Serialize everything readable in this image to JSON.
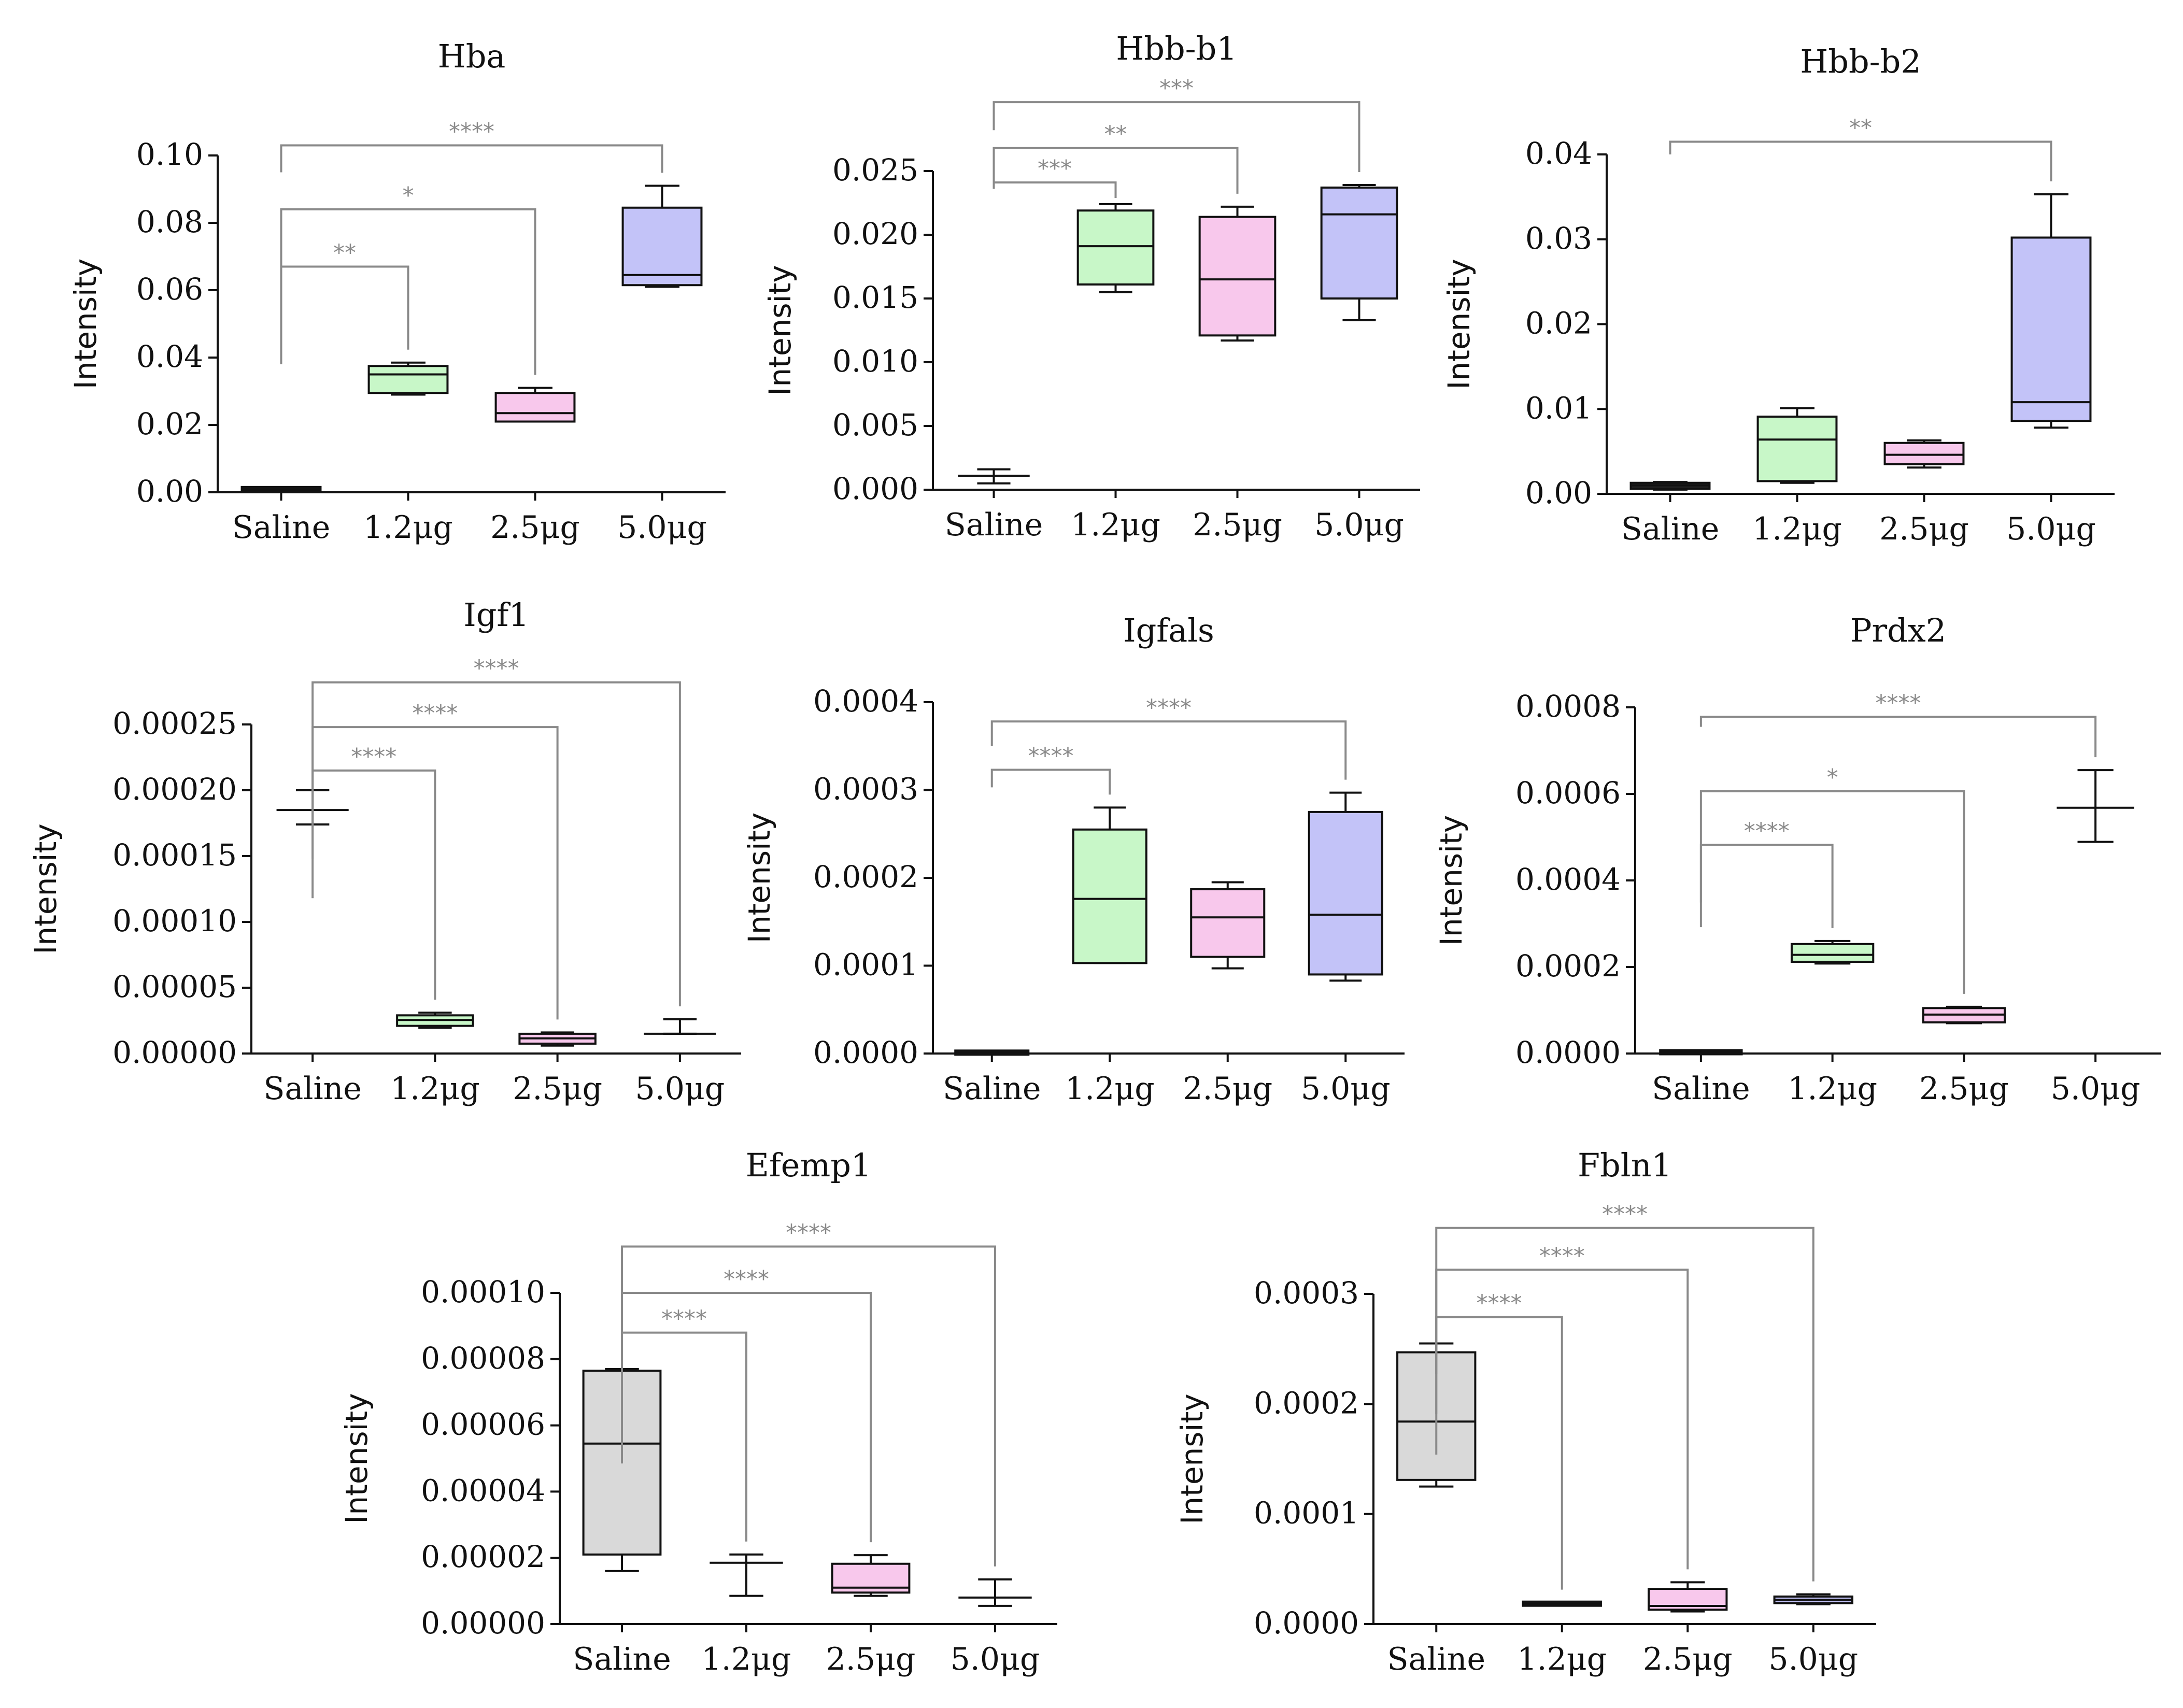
{
  "colors": {
    "saline": "#d9d9d9",
    "dose_1_2": "#c8f7c8",
    "dose_2_5": "#f8c8ec",
    "dose_5_0": "#c3c3f8",
    "bracket": "#8a8a8a",
    "axis": "#111111"
  },
  "chart_data": [
    {
      "type": "box",
      "title": "Hba",
      "ylabel": "Intensity",
      "categories": [
        "Saline",
        "1.2μg",
        "2.5μg",
        "5.0μg"
      ],
      "ylim": [
        0,
        0.1
      ],
      "yticks": [
        "0.00",
        "0.02",
        "0.04",
        "0.06",
        "0.08",
        "0.10"
      ],
      "tick_values": [
        0,
        0.02,
        0.04,
        0.06,
        0.08,
        0.1
      ],
      "boxes": [
        {
          "min": 0.0008,
          "q1": 0.0008,
          "median": 0.0009,
          "q3": 0.0011,
          "max": 0.0012,
          "fill": "#222222"
        },
        {
          "min": 0.029,
          "q1": 0.0295,
          "median": 0.035,
          "q3": 0.0375,
          "max": 0.0385,
          "fill": "#c8f7c8"
        },
        {
          "min": 0.021,
          "q1": 0.021,
          "median": 0.0235,
          "q3": 0.0295,
          "max": 0.031,
          "fill": "#f8c8ec"
        },
        {
          "min": 0.061,
          "q1": 0.0615,
          "median": 0.0645,
          "q3": 0.0845,
          "max": 0.091,
          "fill": "#c3c3f8"
        }
      ],
      "significance": [
        {
          "from": 0,
          "to": 1,
          "label": "**",
          "level": 0.067,
          "drop": 0.055
        },
        {
          "from": 0,
          "to": 2,
          "label": "*",
          "level": 0.084,
          "drop": 0.038
        },
        {
          "from": 0,
          "to": 3,
          "label": "****",
          "level": 0.103,
          "drop": 0.095
        }
      ]
    },
    {
      "type": "box",
      "title": "Hbb-b1",
      "ylabel": "Intensity",
      "categories": [
        "Saline",
        "1.2μg",
        "2.5μg",
        "5.0μg"
      ],
      "ylim": [
        0,
        0.025
      ],
      "yticks": [
        "0.000",
        "0.005",
        "0.010",
        "0.015",
        "0.020",
        "0.025"
      ],
      "tick_values": [
        0,
        0.005,
        0.01,
        0.015,
        0.02,
        0.025
      ],
      "boxes": [
        {
          "min": 0.0005,
          "q1": 0.0011,
          "median": 0.0011,
          "q3": 0.0011,
          "max": 0.0016,
          "fill": "#222222",
          "style": "errorbar"
        },
        {
          "min": 0.0155,
          "q1": 0.0161,
          "median": 0.0191,
          "q3": 0.0219,
          "max": 0.0224,
          "fill": "#c8f7c8"
        },
        {
          "min": 0.0117,
          "q1": 0.0121,
          "median": 0.0165,
          "q3": 0.0214,
          "max": 0.0222,
          "fill": "#f8c8ec"
        },
        {
          "min": 0.0133,
          "q1": 0.015,
          "median": 0.0216,
          "q3": 0.0237,
          "max": 0.0239,
          "fill": "#c3c3f8"
        }
      ],
      "significance": [
        {
          "from": 0,
          "to": 1,
          "label": "***",
          "level": 0.0241,
          "drop": 0.0236
        },
        {
          "from": 0,
          "to": 2,
          "label": "**",
          "level": 0.0268,
          "drop": 0.0241
        },
        {
          "from": 0,
          "to": 3,
          "label": "***",
          "level": 0.0304,
          "drop": 0.0282
        }
      ]
    },
    {
      "type": "box",
      "title": "Hbb-b2",
      "ylabel": "Intensity",
      "categories": [
        "Saline",
        "1.2μg",
        "2.5μg",
        "5.0μg"
      ],
      "ylim": [
        0,
        0.04
      ],
      "yticks": [
        "0.00",
        "0.01",
        "0.02",
        "0.03",
        "0.04"
      ],
      "tick_values": [
        0,
        0.01,
        0.02,
        0.03,
        0.04
      ],
      "boxes": [
        {
          "min": 0.0005,
          "q1": 0.0006,
          "median": 0.001,
          "q3": 0.0013,
          "max": 0.0014,
          "fill": "#222222"
        },
        {
          "min": 0.0013,
          "q1": 0.0015,
          "median": 0.0064,
          "q3": 0.0091,
          "max": 0.0101,
          "fill": "#c8f7c8"
        },
        {
          "min": 0.0031,
          "q1": 0.0035,
          "median": 0.0046,
          "q3": 0.006,
          "max": 0.0063,
          "fill": "#f8c8ec"
        },
        {
          "min": 0.0078,
          "q1": 0.0086,
          "median": 0.0108,
          "q3": 0.0302,
          "max": 0.0353,
          "fill": "#c3c3f8"
        }
      ],
      "significance": [
        {
          "from": 0,
          "to": 3,
          "label": "**",
          "level": 0.0415,
          "drop": 0.04
        }
      ]
    },
    {
      "type": "box",
      "title": "Igf1",
      "ylabel": "Intensity",
      "categories": [
        "Saline",
        "1.2μg",
        "2.5μg",
        "5.0μg"
      ],
      "ylim": [
        0,
        0.00025
      ],
      "yticks": [
        "0.00000",
        "0.00005",
        "0.00010",
        "0.00015",
        "0.00020",
        "0.00025"
      ],
      "tick_values": [
        0,
        5e-05,
        0.0001,
        0.00015,
        0.0002,
        0.00025
      ],
      "boxes": [
        {
          "min": 0.000174,
          "q1": 0.000185,
          "median": 0.000185,
          "q3": 0.000185,
          "max": 0.0002,
          "fill": "#ffffff",
          "style": "errorbar"
        },
        {
          "min": 1.95e-05,
          "q1": 2.1e-05,
          "median": 2.55e-05,
          "q3": 2.9e-05,
          "max": 3.1e-05,
          "fill": "#c8f7c8"
        },
        {
          "min": 6e-06,
          "q1": 7.5e-06,
          "median": 1.15e-05,
          "q3": 1.5e-05,
          "max": 1.6e-05,
          "fill": "#f8c8ec"
        },
        {
          "min": 1.5e-05,
          "q1": 1.5e-05,
          "median": 1.5e-05,
          "q3": 1.5e-05,
          "max": 2.6e-05,
          "fill": "#ffffff",
          "style": "errorbar"
        }
      ],
      "significance": [
        {
          "from": 0,
          "to": 1,
          "label": "****",
          "level": 0.000215,
          "drop": 0.000178
        },
        {
          "from": 0,
          "to": 2,
          "label": "****",
          "level": 0.000248,
          "drop": 0.000148
        },
        {
          "from": 0,
          "to": 3,
          "label": "****",
          "level": 0.000282,
          "drop": 0.000118
        }
      ]
    },
    {
      "type": "box",
      "title": "Igfals",
      "ylabel": "Intensity",
      "categories": [
        "Saline",
        "1.2μg",
        "2.5μg",
        "5.0μg"
      ],
      "ylim": [
        0,
        0.0004
      ],
      "yticks": [
        "0.0000",
        "0.0001",
        "0.0002",
        "0.0003",
        "0.0004"
      ],
      "tick_values": [
        0,
        0.0001,
        0.0002,
        0.0003,
        0.0004
      ],
      "boxes": [
        {
          "min": 1e-06,
          "q1": 1e-06,
          "median": 1e-06,
          "q3": 1e-06,
          "max": 1e-06,
          "fill": "#222222"
        },
        {
          "min": 0.000103,
          "q1": 0.000103,
          "median": 0.000176,
          "q3": 0.000255,
          "max": 0.00028,
          "fill": "#c8f7c8"
        },
        {
          "min": 9.7e-05,
          "q1": 0.00011,
          "median": 0.000155,
          "q3": 0.000187,
          "max": 0.000195,
          "fill": "#f8c8ec"
        },
        {
          "min": 8.3e-05,
          "q1": 9e-05,
          "median": 0.000158,
          "q3": 0.000275,
          "max": 0.000297,
          "fill": "#c3c3f8"
        }
      ],
      "significance": [
        {
          "from": 0,
          "to": 1,
          "label": "****",
          "level": 0.000323,
          "drop": 0.000303
        },
        {
          "from": 0,
          "to": 3,
          "label": "****",
          "level": 0.000378,
          "drop": 0.00035
        }
      ]
    },
    {
      "type": "box",
      "title": "Prdx2",
      "ylabel": "Intensity",
      "categories": [
        "Saline",
        "1.2μg",
        "2.5μg",
        "5.0μg"
      ],
      "ylim": [
        0,
        0.0008
      ],
      "yticks": [
        "0.0000",
        "0.0002",
        "0.0004",
        "0.0006",
        "0.0008"
      ],
      "tick_values": [
        0,
        0.0002,
        0.0004,
        0.0006,
        0.0008
      ],
      "boxes": [
        {
          "min": 2e-06,
          "q1": 2e-06,
          "median": 3e-06,
          "q3": 4e-06,
          "max": 4e-06,
          "fill": "#222222"
        },
        {
          "min": 0.000208,
          "q1": 0.000212,
          "median": 0.000228,
          "q3": 0.000253,
          "max": 0.00026,
          "fill": "#c8f7c8"
        },
        {
          "min": 7e-05,
          "q1": 7.2e-05,
          "median": 9e-05,
          "q3": 0.000105,
          "max": 0.000108,
          "fill": "#f8c8ec"
        },
        {
          "min": 0.000489,
          "q1": 0.000568,
          "median": 0.000568,
          "q3": 0.000568,
          "max": 0.000655,
          "fill": "#ffffff",
          "style": "errorbar"
        }
      ],
      "significance": [
        {
          "from": 0,
          "to": 1,
          "label": "****",
          "level": 0.000482,
          "drop": 0.000349
        },
        {
          "from": 0,
          "to": 2,
          "label": "*",
          "level": 0.000606,
          "drop": 0.000292
        },
        {
          "from": 0,
          "to": 3,
          "label": "****",
          "level": 0.000778,
          "drop": 0.000755
        }
      ]
    },
    {
      "type": "box",
      "title": "Efemp1",
      "ylabel": "Intensity",
      "categories": [
        "Saline",
        "1.2μg",
        "2.5μg",
        "5.0μg"
      ],
      "ylim": [
        0,
        0.0001
      ],
      "yticks": [
        "0.00000",
        "0.00002",
        "0.00004",
        "0.00006",
        "0.00008",
        "0.00010"
      ],
      "tick_values": [
        0,
        2e-05,
        4e-05,
        6e-05,
        8e-05,
        0.0001
      ],
      "boxes": [
        {
          "min": 1.6e-05,
          "q1": 2.1e-05,
          "median": 5.45e-05,
          "q3": 7.65e-05,
          "max": 7.7e-05,
          "fill": "#d9d9d9"
        },
        {
          "min": 8.5e-06,
          "q1": 1.85e-05,
          "median": 1.85e-05,
          "q3": 1.85e-05,
          "max": 2.1e-05,
          "fill": "#ffffff",
          "style": "errorbar"
        },
        {
          "min": 8.5e-06,
          "q1": 9.5e-06,
          "median": 1.1e-05,
          "q3": 1.82e-05,
          "max": 2.08e-05,
          "fill": "#f8c8ec"
        },
        {
          "min": 5.5e-06,
          "q1": 8e-06,
          "median": 8e-06,
          "q3": 8e-06,
          "max": 1.35e-05,
          "fill": "#ffffff",
          "style": "errorbar"
        }
      ],
      "significance": [
        {
          "from": 0,
          "to": 1,
          "label": "****",
          "level": 8.8e-05,
          "drop": 7.3e-05
        },
        {
          "from": 0,
          "to": 2,
          "label": "****",
          "level": 0.0001,
          "drop": 6.1e-05
        },
        {
          "from": 0,
          "to": 3,
          "label": "****",
          "level": 0.000114,
          "drop": 4.85e-05
        }
      ]
    },
    {
      "type": "box",
      "title": "Fbln1",
      "ylabel": "Intensity",
      "categories": [
        "Saline",
        "1.2μg",
        "2.5μg",
        "5.0μg"
      ],
      "ylim": [
        0,
        0.0003
      ],
      "yticks": [
        "0.0000",
        "0.0001",
        "0.0002",
        "0.0003"
      ],
      "tick_values": [
        0,
        0.0001,
        0.0002,
        0.0003
      ],
      "boxes": [
        {
          "min": 0.000125,
          "q1": 0.000131,
          "median": 0.000184,
          "q3": 0.000247,
          "max": 0.000255,
          "fill": "#d9d9d9"
        },
        {
          "min": 1.75e-05,
          "q1": 1.75e-05,
          "median": 1.85e-05,
          "q3": 1.95e-05,
          "max": 1.95e-05,
          "fill": "#222222"
        },
        {
          "min": 1.15e-05,
          "q1": 1.3e-05,
          "median": 1.65e-05,
          "q3": 3.2e-05,
          "max": 3.8e-05,
          "fill": "#f8c8ec"
        },
        {
          "min": 1.8e-05,
          "q1": 1.9e-05,
          "median": 2.2e-05,
          "q3": 2.5e-05,
          "max": 2.7e-05,
          "fill": "#c3c3f8"
        }
      ],
      "significance": [
        {
          "from": 0,
          "to": 1,
          "label": "****",
          "level": 0.000279,
          "drop": 0.000227
        },
        {
          "from": 0,
          "to": 2,
          "label": "****",
          "level": 0.000322,
          "drop": 0.000191
        },
        {
          "from": 0,
          "to": 3,
          "label": "****",
          "level": 0.00036,
          "drop": 0.000154
        }
      ]
    }
  ]
}
